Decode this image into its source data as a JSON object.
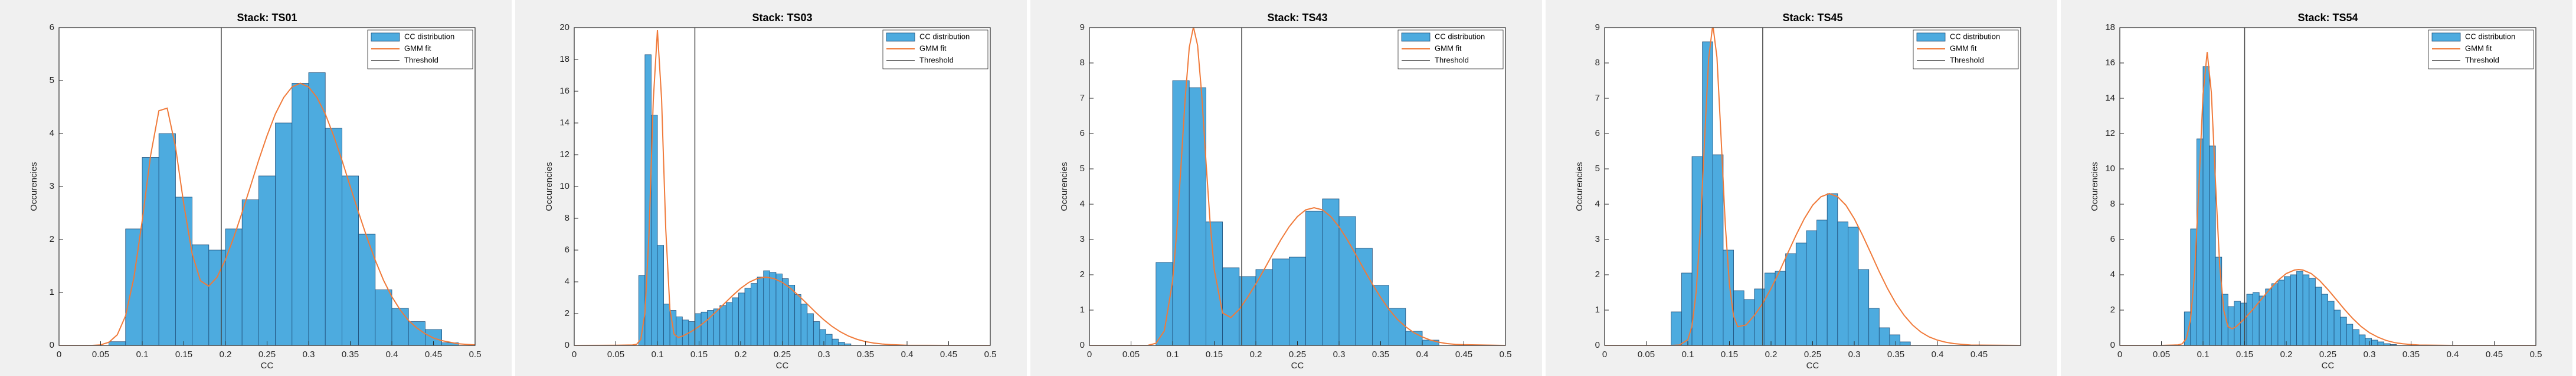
{
  "chart_data": [
    {
      "type": "histogram",
      "title": "Stack: TS01",
      "xlabel": "CC",
      "ylabel": "Occurencies",
      "bins": [
        0.06,
        0.08,
        0.1,
        0.12,
        0.14,
        0.16,
        0.18,
        0.2,
        0.22,
        0.24,
        0.26,
        0.28,
        0.3,
        0.32,
        0.34,
        0.36,
        0.38,
        0.4,
        0.42,
        0.44,
        0.46,
        0.48
      ],
      "series": [
        {
          "name": "CC distribution",
          "color": "#4dabdf",
          "values": [
            0.07,
            2.2,
            3.55,
            4.0,
            2.8,
            1.9,
            1.8,
            2.2,
            2.75,
            3.2,
            4.2,
            4.95,
            5.15,
            4.1,
            3.2,
            2.1,
            1.05,
            0.7,
            0.45,
            0.3,
            0.05
          ]
        },
        {
          "name": "GMM fit",
          "type": "line",
          "color": "#f07a3a",
          "x": [
            0,
            0.04,
            0.05,
            0.06,
            0.07,
            0.08,
            0.09,
            0.1,
            0.11,
            0.12,
            0.13,
            0.14,
            0.15,
            0.16,
            0.17,
            0.18,
            0.19,
            0.2,
            0.21,
            0.22,
            0.23,
            0.24,
            0.25,
            0.26,
            0.27,
            0.28,
            0.29,
            0.3,
            0.31,
            0.32,
            0.33,
            0.34,
            0.35,
            0.36,
            0.37,
            0.38,
            0.39,
            0.4,
            0.41,
            0.42,
            0.43,
            0.44,
            0.45,
            0.46,
            0.47,
            0.48,
            0.49,
            0.5
          ],
          "values": [
            0,
            0,
            0.01,
            0.06,
            0.2,
            0.56,
            1.28,
            2.36,
            3.58,
            4.43,
            4.48,
            3.75,
            2.66,
            1.73,
            1.22,
            1.12,
            1.29,
            1.62,
            2.04,
            2.51,
            3.0,
            3.5,
            3.96,
            4.37,
            4.68,
            4.88,
            4.95,
            4.88,
            4.68,
            4.37,
            3.96,
            3.5,
            3.0,
            2.51,
            2.04,
            1.61,
            1.23,
            0.92,
            0.67,
            0.47,
            0.33,
            0.22,
            0.14,
            0.09,
            0.06,
            0.03,
            0.02,
            0.01
          ]
        },
        {
          "name": "Threshold",
          "type": "vline",
          "color": "#444444",
          "x": 0.195
        }
      ],
      "xlim": [
        0,
        0.5
      ],
      "xticks": [
        0,
        0.05,
        0.1,
        0.15,
        0.2,
        0.25,
        0.3,
        0.35,
        0.4,
        0.45,
        0.5
      ],
      "ylim": [
        0,
        6
      ],
      "yticks": [
        0,
        1,
        2,
        3,
        4,
        5,
        6
      ],
      "legend": "upper right"
    },
    {
      "type": "histogram",
      "title": "Stack: TS03",
      "xlabel": "CC",
      "ylabel": "Occurencies",
      "bins": [
        0.0775,
        0.085,
        0.0925,
        0.1,
        0.1075,
        0.115,
        0.1225,
        0.13,
        0.1375,
        0.145,
        0.1525,
        0.16,
        0.1675,
        0.175,
        0.1825,
        0.19,
        0.1975,
        0.205,
        0.2125,
        0.22,
        0.2275,
        0.235,
        0.2425,
        0.25,
        0.2575,
        0.265,
        0.2725,
        0.28,
        0.2875,
        0.295,
        0.3025,
        0.31,
        0.3175,
        0.325,
        0.3325
      ],
      "series": [
        {
          "name": "CC distribution",
          "color": "#4dabdf",
          "values": [
            4.4,
            18.3,
            14.5,
            6.3,
            2.6,
            2.2,
            1.8,
            1.6,
            1.5,
            2.0,
            2.1,
            2.2,
            2.3,
            2.5,
            2.7,
            3.0,
            3.3,
            3.6,
            3.9,
            4.3,
            4.7,
            4.6,
            4.5,
            4.2,
            3.8,
            3.2,
            2.6,
            2.0,
            1.5,
            1.0,
            0.7,
            0.4,
            0.2,
            0.1
          ]
        },
        {
          "name": "GMM fit",
          "type": "line",
          "color": "#f07a3a",
          "x": [
            0,
            0.05,
            0.07,
            0.075,
            0.08,
            0.085,
            0.09,
            0.095,
            0.1,
            0.105,
            0.11,
            0.115,
            0.12,
            0.125,
            0.13,
            0.14,
            0.15,
            0.16,
            0.17,
            0.18,
            0.19,
            0.2,
            0.21,
            0.22,
            0.23,
            0.24,
            0.25,
            0.26,
            0.27,
            0.28,
            0.29,
            0.3,
            0.31,
            0.32,
            0.33,
            0.34,
            0.35,
            0.36,
            0.37,
            0.38,
            0.4,
            0.45,
            0.5
          ],
          "values": [
            0,
            0.01,
            0.03,
            0.07,
            0.38,
            2.04,
            7.18,
            15.4,
            19.85,
            15.5,
            7.34,
            2.28,
            0.71,
            0.5,
            0.58,
            0.85,
            1.19,
            1.61,
            2.09,
            2.61,
            3.12,
            3.59,
            3.97,
            4.21,
            4.3,
            4.21,
            3.97,
            3.59,
            3.12,
            2.61,
            2.09,
            1.61,
            1.19,
            0.85,
            0.58,
            0.38,
            0.24,
            0.15,
            0.09,
            0.05,
            0.01,
            0,
            0
          ]
        },
        {
          "name": "Threshold",
          "type": "vline",
          "color": "#444444",
          "x": 0.145
        }
      ],
      "xlim": [
        0,
        0.5
      ],
      "xticks": [
        0,
        0.05,
        0.1,
        0.15,
        0.2,
        0.25,
        0.3,
        0.35,
        0.4,
        0.45,
        0.5
      ],
      "ylim": [
        0,
        20
      ],
      "yticks": [
        0,
        2,
        4,
        6,
        8,
        10,
        12,
        14,
        16,
        18,
        20
      ],
      "legend": "upper right"
    },
    {
      "type": "histogram",
      "title": "Stack: TS43",
      "xlabel": "CC",
      "ylabel": "Occurencies",
      "bins": [
        0.08,
        0.1,
        0.12,
        0.14,
        0.16,
        0.18,
        0.2,
        0.22,
        0.24,
        0.26,
        0.28,
        0.3,
        0.32,
        0.34,
        0.36,
        0.38,
        0.4,
        0.42
      ],
      "series": [
        {
          "name": "CC distribution",
          "color": "#4dabdf",
          "values": [
            2.35,
            7.5,
            7.3,
            3.5,
            2.2,
            1.95,
            2.15,
            2.45,
            2.5,
            3.8,
            4.15,
            3.65,
            2.75,
            1.7,
            1.05,
            0.4,
            0.15
          ]
        },
        {
          "name": "GMM fit",
          "type": "line",
          "color": "#f07a3a",
          "x": [
            0,
            0.05,
            0.07,
            0.08,
            0.09,
            0.1,
            0.105,
            0.11,
            0.115,
            0.12,
            0.125,
            0.13,
            0.135,
            0.14,
            0.145,
            0.15,
            0.16,
            0.17,
            0.18,
            0.19,
            0.2,
            0.21,
            0.22,
            0.23,
            0.24,
            0.25,
            0.26,
            0.27,
            0.28,
            0.29,
            0.3,
            0.31,
            0.32,
            0.33,
            0.34,
            0.35,
            0.36,
            0.37,
            0.38,
            0.39,
            0.4,
            0.41,
            0.42,
            0.43,
            0.44,
            0.45,
            0.5
          ],
          "values": [
            0,
            0,
            0,
            0.06,
            0.41,
            1.82,
            3.24,
            5.06,
            6.97,
            8.44,
            9.02,
            8.5,
            7.09,
            5.24,
            3.5,
            2.15,
            0.92,
            0.79,
            1.02,
            1.36,
            1.74,
            2.15,
            2.58,
            2.99,
            3.36,
            3.65,
            3.84,
            3.9,
            3.84,
            3.65,
            3.36,
            2.99,
            2.58,
            2.15,
            1.74,
            1.36,
            1.02,
            0.74,
            0.53,
            0.36,
            0.24,
            0.15,
            0.09,
            0.05,
            0.03,
            0.02,
            0
          ]
        },
        {
          "name": "Threshold",
          "type": "vline",
          "color": "#444444",
          "x": 0.183
        }
      ],
      "xlim": [
        0,
        0.5
      ],
      "xticks": [
        0,
        0.05,
        0.1,
        0.15,
        0.2,
        0.25,
        0.3,
        0.35,
        0.4,
        0.45,
        0.5
      ],
      "ylim": [
        0,
        9
      ],
      "yticks": [
        0,
        1,
        2,
        3,
        4,
        5,
        6,
        7,
        8,
        9
      ],
      "legend": "upper right"
    },
    {
      "type": "histogram",
      "title": "Stack: TS45",
      "xlabel": "CC",
      "ylabel": "Occurencies",
      "bins": [
        0.08,
        0.0925,
        0.105,
        0.1175,
        0.13,
        0.1425,
        0.155,
        0.1675,
        0.18,
        0.1925,
        0.205,
        0.2175,
        0.23,
        0.2425,
        0.255,
        0.2675,
        0.28,
        0.2925,
        0.305,
        0.3175,
        0.33,
        0.3425,
        0.355,
        0.3675
      ],
      "series": [
        {
          "name": "CC distribution",
          "color": "#4dabdf",
          "values": [
            0.95,
            2.05,
            5.35,
            8.6,
            5.4,
            2.7,
            1.55,
            1.3,
            1.6,
            2.05,
            2.1,
            2.6,
            2.9,
            3.25,
            3.55,
            4.3,
            3.5,
            3.35,
            2.15,
            1.05,
            0.5,
            0.3,
            0.1
          ]
        },
        {
          "name": "GMM fit",
          "type": "line",
          "color": "#f07a3a",
          "x": [
            0,
            0.05,
            0.08,
            0.09,
            0.1,
            0.105,
            0.11,
            0.115,
            0.12,
            0.125,
            0.13,
            0.135,
            0.14,
            0.145,
            0.15,
            0.155,
            0.16,
            0.17,
            0.18,
            0.19,
            0.2,
            0.21,
            0.22,
            0.23,
            0.24,
            0.25,
            0.26,
            0.27,
            0.28,
            0.29,
            0.3,
            0.31,
            0.32,
            0.33,
            0.34,
            0.35,
            0.36,
            0.37,
            0.38,
            0.39,
            0.4,
            0.41,
            0.42,
            0.43,
            0.44,
            0.5
          ],
          "values": [
            0,
            0,
            0,
            0.01,
            0.16,
            0.55,
            1.51,
            3.28,
            5.77,
            8.11,
            9.09,
            8.16,
            5.87,
            3.43,
            1.72,
            0.83,
            0.53,
            0.58,
            0.85,
            1.19,
            1.61,
            2.09,
            2.61,
            3.12,
            3.59,
            3.97,
            4.21,
            4.3,
            4.21,
            3.97,
            3.59,
            3.12,
            2.61,
            2.09,
            1.61,
            1.19,
            0.85,
            0.58,
            0.38,
            0.24,
            0.15,
            0.09,
            0.05,
            0.03,
            0.01,
            0
          ]
        },
        {
          "name": "Threshold",
          "type": "vline",
          "color": "#444444",
          "x": 0.19
        }
      ],
      "xlim": [
        0,
        0.5
      ],
      "xticks": [
        0,
        0.05,
        0.1,
        0.15,
        0.2,
        0.25,
        0.3,
        0.35,
        0.4,
        0.45
      ],
      "ylim": [
        0,
        9
      ],
      "yticks": [
        0,
        1,
        2,
        3,
        4,
        5,
        6,
        7,
        8,
        9
      ],
      "legend": "upper right"
    },
    {
      "type": "histogram",
      "title": "Stack: TS54",
      "xlabel": "CC",
      "ylabel": "Occurencies",
      "bins": [
        0.0775,
        0.085,
        0.0925,
        0.1,
        0.1075,
        0.115,
        0.1225,
        0.13,
        0.1375,
        0.145,
        0.1525,
        0.16,
        0.1675,
        0.175,
        0.1825,
        0.19,
        0.1975,
        0.205,
        0.2125,
        0.22,
        0.2275,
        0.235,
        0.2425,
        0.25,
        0.2575,
        0.265,
        0.2725,
        0.28,
        0.2875,
        0.295,
        0.3025,
        0.31,
        0.3175,
        0.325,
        0.3325
      ],
      "series": [
        {
          "name": "CC distribution",
          "color": "#4dabdf",
          "values": [
            1.9,
            6.6,
            11.7,
            15.8,
            11.3,
            5.0,
            2.9,
            2.2,
            2.5,
            2.4,
            2.9,
            3.0,
            2.8,
            3.2,
            3.5,
            3.7,
            3.9,
            4.0,
            4.2,
            4.0,
            3.8,
            3.3,
            2.9,
            2.5,
            2.0,
            1.6,
            1.2,
            0.9,
            0.6,
            0.4,
            0.3,
            0.2,
            0.1,
            0.05
          ]
        },
        {
          "name": "GMM fit",
          "type": "line",
          "color": "#f07a3a",
          "x": [
            0,
            0.05,
            0.07,
            0.075,
            0.08,
            0.085,
            0.09,
            0.095,
            0.1,
            0.105,
            0.11,
            0.115,
            0.12,
            0.125,
            0.13,
            0.135,
            0.14,
            0.15,
            0.16,
            0.17,
            0.18,
            0.19,
            0.2,
            0.21,
            0.215,
            0.22,
            0.23,
            0.24,
            0.25,
            0.26,
            0.27,
            0.28,
            0.29,
            0.3,
            0.31,
            0.32,
            0.33,
            0.34,
            0.35,
            0.36,
            0.4,
            0.5
          ],
          "values": [
            0,
            0,
            0.03,
            0.09,
            0.39,
            1.46,
            4.17,
            8.98,
            14.21,
            16.62,
            14.33,
            9.23,
            4.55,
            1.97,
            1.06,
            0.94,
            1.07,
            1.52,
            2.04,
            2.61,
            3.17,
            3.68,
            4.07,
            4.27,
            4.3,
            4.27,
            4.07,
            3.68,
            3.17,
            2.61,
            2.04,
            1.52,
            1.07,
            0.72,
            0.47,
            0.28,
            0.16,
            0.09,
            0.05,
            0.02,
            0,
            0
          ]
        },
        {
          "name": "Threshold",
          "type": "vline",
          "color": "#444444",
          "x": 0.15
        }
      ],
      "xlim": [
        0,
        0.5
      ],
      "xticks": [
        0,
        0.05,
        0.1,
        0.15,
        0.2,
        0.25,
        0.3,
        0.35,
        0.4,
        0.45,
        0.5
      ],
      "ylim": [
        0,
        18
      ],
      "yticks": [
        0,
        2,
        4,
        6,
        8,
        10,
        12,
        14,
        16,
        18
      ],
      "legend": "upper right"
    }
  ]
}
